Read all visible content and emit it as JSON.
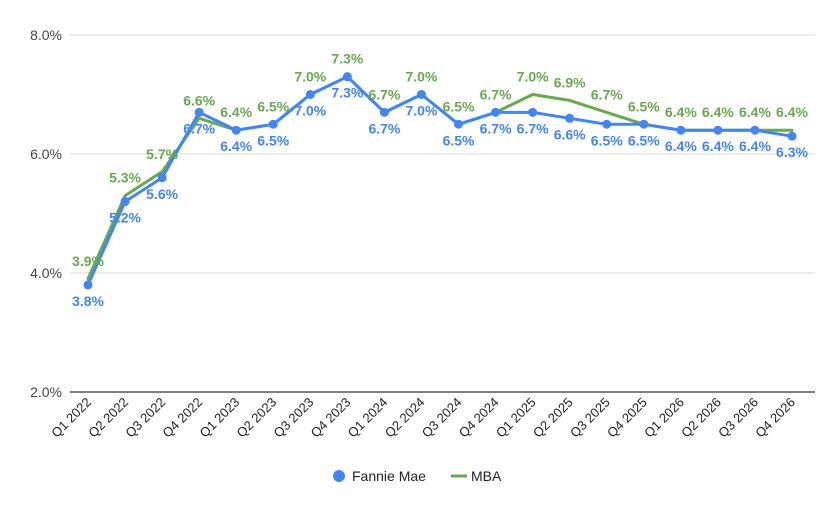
{
  "chart_data": {
    "type": "line",
    "categories": [
      "Q1 2022",
      "Q2 2022",
      "Q3 2022",
      "Q4 2022",
      "Q1 2023",
      "Q2 2023",
      "Q3 2023",
      "Q4 2023",
      "Q1 2024",
      "Q2 2024",
      "Q3 2024",
      "Q4 2024",
      "Q1 2025",
      "Q2 2025",
      "Q3 2025",
      "Q4 2025",
      "Q1 2026",
      "Q2 2026",
      "Q3 2026",
      "Q4 2026"
    ],
    "series": [
      {
        "name": "Fannie Mae",
        "color": "#4285f4",
        "marker": "circle",
        "values": [
          3.8,
          5.2,
          5.6,
          6.7,
          6.4,
          6.5,
          7.0,
          7.3,
          6.7,
          7.0,
          6.5,
          6.7,
          6.7,
          6.6,
          6.5,
          6.5,
          6.4,
          6.4,
          6.4,
          6.3
        ],
        "labels": [
          "3.8%",
          "5.2%",
          "5.6%",
          "6.7%",
          "6.4%",
          "6.5%",
          "7.0%",
          "7.3%",
          "6.7%",
          "7.0%",
          "6.5%",
          "6.7%",
          "6.7%",
          "6.6%",
          "6.5%",
          "6.5%",
          "6.4%",
          "6.4%",
          "6.4%",
          "6.3%"
        ]
      },
      {
        "name": "MBA",
        "color": "#6aa84f",
        "marker": "line",
        "values": [
          3.9,
          5.3,
          5.7,
          6.6,
          6.4,
          6.5,
          7.0,
          7.3,
          6.7,
          7.0,
          6.5,
          6.7,
          7.0,
          6.9,
          6.7,
          6.5,
          6.4,
          6.4,
          6.4,
          6.4
        ],
        "labels": [
          "3.9%",
          "5.3%",
          "5.7%",
          "6.6%",
          "6.4%",
          "6.5%",
          "7.0%",
          "7.3%",
          "6.7%",
          "7.0%",
          "6.5%",
          "6.7%",
          "7.0%",
          "6.9%",
          "6.7%",
          "6.5%",
          "6.4%",
          "6.4%",
          "6.4%",
          "6.4%"
        ]
      }
    ],
    "y_ticks": [
      "2.0%",
      "4.0%",
      "6.0%",
      "8.0%"
    ],
    "y_tick_values": [
      2.0,
      4.0,
      6.0,
      8.0
    ],
    "ylim": [
      2.0,
      8.0
    ],
    "grid": true,
    "legend_position": "bottom"
  }
}
